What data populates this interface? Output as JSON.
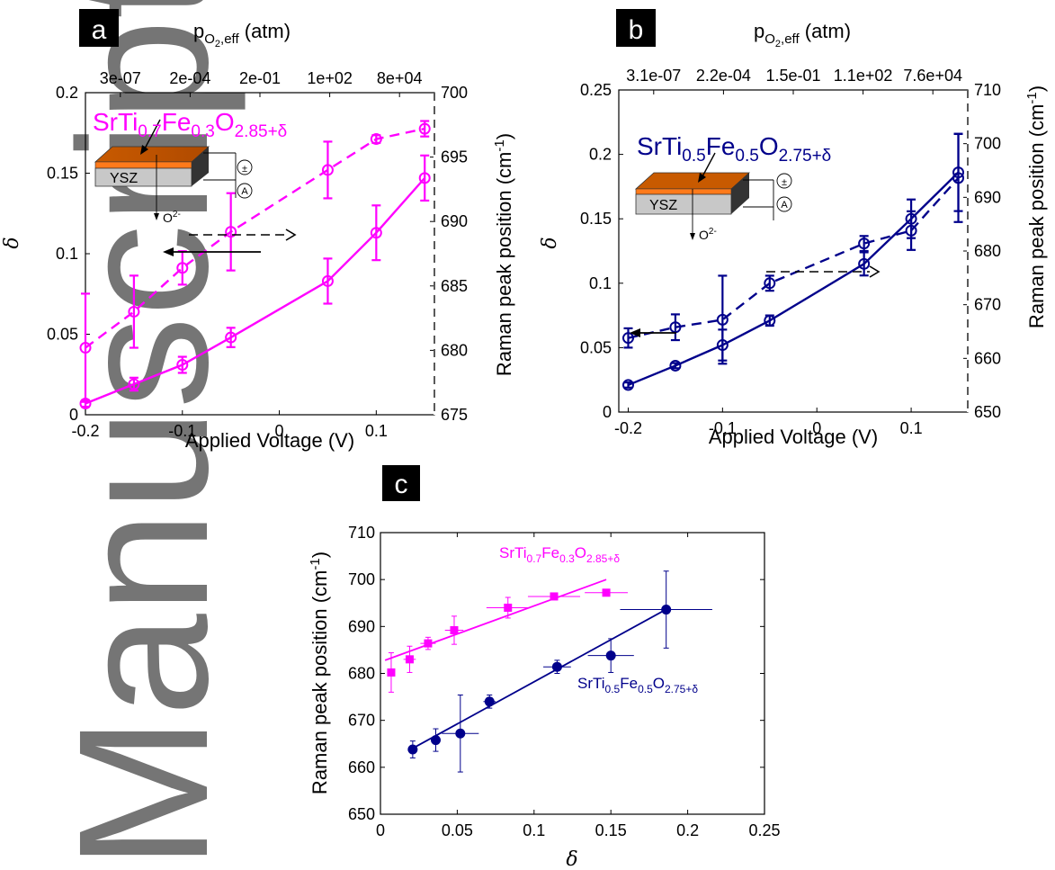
{
  "chart_data": [
    {
      "panel": "a",
      "type": "line",
      "top_axis_label": "p",
      "top_axis_sub": "O",
      "top_axis_sub2": "2",
      "top_axis_sub3": ",eff",
      "top_axis_unit": " (atm)",
      "top_ticks": [
        "3e-07",
        "2e-04",
        "2e-01",
        "1e+02",
        "8e+04"
      ],
      "xlabel": "Applied Voltage (V)",
      "xlim": [
        -0.2,
        0.16
      ],
      "x_ticks": [
        "-0.2",
        "-0.1",
        "0",
        "0.1"
      ],
      "x_tick_values": [
        -0.2,
        -0.1,
        0,
        0.1
      ],
      "ylabel_left": "δ",
      "ylim_left": [
        0,
        0.2
      ],
      "y_ticks_left": [
        "0",
        "0.05",
        "0.1",
        "0.15",
        "0.2"
      ],
      "y_tick_values_left": [
        0,
        0.05,
        0.1,
        0.15,
        0.2
      ],
      "ylabel_right": "Raman peak position (cm",
      "ylabel_right_sup": "-1",
      "ylabel_right_end": ")",
      "ylim_right": [
        675,
        700
      ],
      "y_ticks_right": [
        "675",
        "680",
        "685",
        "690",
        "695",
        "700"
      ],
      "y_tick_values_right": [
        675,
        680,
        685,
        690,
        695,
        700
      ],
      "color": "#ff00ff",
      "formula": {
        "a": "SrTi",
        "b": "0.7",
        "c": "Fe",
        "d": "0.3",
        "e": "O",
        "f": "2.85+δ"
      },
      "inset": {
        "material": "YSZ",
        "ion": "O",
        "ion_charge": "2-",
        "meter": "A",
        "source": "±"
      },
      "series": [
        {
          "axis": "left",
          "style": "solid",
          "x": [
            -0.2,
            -0.15,
            -0.1,
            -0.05,
            0.05,
            0.1,
            0.15
          ],
          "y": [
            0.007,
            0.019,
            0.031,
            0.048,
            0.083,
            0.113,
            0.147
          ],
          "err": [
            0.002,
            0.004,
            0.005,
            0.006,
            0.014,
            0.017,
            0.014
          ]
        },
        {
          "axis": "right",
          "style": "dashed",
          "x": [
            -0.2,
            -0.15,
            -0.1,
            -0.05,
            0.05,
            0.1,
            0.15
          ],
          "y": [
            680.2,
            683.0,
            686.4,
            689.2,
            694.0,
            696.4,
            697.2
          ],
          "err": [
            4.2,
            2.8,
            1.3,
            3.0,
            2.2,
            0.3,
            0.6
          ]
        }
      ]
    },
    {
      "panel": "b",
      "type": "line",
      "top_axis_label": "p",
      "top_axis_sub": "O",
      "top_axis_sub2": "2",
      "top_axis_sub3": ",eff",
      "top_axis_unit": " (atm)",
      "top_ticks": [
        "3.1e-07",
        "2.2e-04",
        "1.5e-01",
        "1.1e+02",
        "7.6e+04"
      ],
      "xlabel": "Applied Voltage (V)",
      "xlim": [
        -0.21,
        0.16
      ],
      "x_ticks": [
        "-0.2",
        "-0.1",
        "0",
        "0.1"
      ],
      "x_tick_values": [
        -0.2,
        -0.1,
        0,
        0.1
      ],
      "ylabel_left": "δ",
      "ylim_left": [
        0,
        0.25
      ],
      "y_ticks_left": [
        "0",
        "0.05",
        "0.1",
        "0.15",
        "0.2",
        "0.25"
      ],
      "y_tick_values_left": [
        0,
        0.05,
        0.1,
        0.15,
        0.2,
        0.25
      ],
      "ylabel_right": "Raman peak position (cm",
      "ylabel_right_sup": "-1",
      "ylabel_right_end": ")",
      "ylim_right": [
        650,
        710
      ],
      "y_ticks_right": [
        "650",
        "660",
        "670",
        "680",
        "690",
        "700",
        "710"
      ],
      "y_tick_values_right": [
        650,
        660,
        670,
        680,
        690,
        700,
        710
      ],
      "color": "#00008b",
      "formula": {
        "a": "SrTi",
        "b": "0.5",
        "c": "Fe",
        "d": "0.5",
        "e": "O",
        "f": "2.75+δ"
      },
      "inset": {
        "material": "YSZ",
        "ion": "O",
        "ion_charge": "2-",
        "meter": "A",
        "source": "±"
      },
      "series": [
        {
          "axis": "left",
          "style": "solid",
          "x": [
            -0.2,
            -0.15,
            -0.1,
            -0.05,
            0.05,
            0.1,
            0.15
          ],
          "y": [
            0.021,
            0.036,
            0.052,
            0.071,
            0.115,
            0.15,
            0.186
          ],
          "err": [
            0.002,
            0.002,
            0.012,
            0.004,
            0.009,
            0.015,
            0.03
          ]
        },
        {
          "axis": "right",
          "style": "dashed",
          "x": [
            -0.2,
            -0.15,
            -0.1,
            -0.05,
            0.05,
            0.1,
            0.15
          ],
          "y": [
            663.8,
            665.8,
            667.2,
            674.0,
            681.4,
            683.8,
            693.6
          ],
          "err": [
            1.8,
            2.4,
            8.2,
            1.4,
            1.4,
            3.6,
            8.2
          ]
        }
      ]
    },
    {
      "panel": "c",
      "type": "scatter",
      "xlabel": "δ",
      "xlim": [
        0,
        0.25
      ],
      "x_ticks": [
        "0",
        "0.05",
        "0.1",
        "0.15",
        "0.2",
        "0.25"
      ],
      "x_tick_values": [
        0,
        0.05,
        0.1,
        0.15,
        0.2,
        0.25
      ],
      "ylabel": "Raman peak position (cm",
      "ylabel_sup": "-1",
      "ylabel_end": ")",
      "ylim": [
        650,
        710
      ],
      "y_ticks": [
        "650",
        "660",
        "670",
        "680",
        "690",
        "700",
        "710"
      ],
      "y_tick_values": [
        650,
        660,
        670,
        680,
        690,
        700,
        710
      ],
      "series": [
        {
          "color": "#ff00ff",
          "marker": "square",
          "formula": {
            "a": "SrTi",
            "b": "0.7",
            "c": "Fe",
            "d": "0.3",
            "e": "O",
            "f": "2.85+δ"
          },
          "x": [
            0.007,
            0.019,
            0.031,
            0.048,
            0.083,
            0.113,
            0.147
          ],
          "y": [
            680.2,
            683.0,
            686.4,
            689.2,
            694.0,
            696.4,
            697.2
          ],
          "xerr": [
            0.002,
            0.004,
            0.005,
            0.006,
            0.014,
            0.017,
            0.014
          ],
          "yerr": [
            4.2,
            2.8,
            1.3,
            3.0,
            2.2,
            0.3,
            0.6
          ],
          "fit": {
            "x": [
              0.003,
              0.147
            ],
            "y": [
              682.8,
              700.0
            ]
          }
        },
        {
          "color": "#00008b",
          "marker": "circle",
          "formula": {
            "a": "SrTi",
            "b": "0.5",
            "c": "Fe",
            "d": "0.5",
            "e": "O",
            "f": "2.75+δ"
          },
          "x": [
            0.021,
            0.036,
            0.052,
            0.071,
            0.115,
            0.15,
            0.186
          ],
          "y": [
            663.8,
            665.8,
            667.2,
            674.0,
            681.4,
            683.8,
            693.6
          ],
          "xerr": [
            0.002,
            0.002,
            0.012,
            0.004,
            0.009,
            0.015,
            0.03
          ],
          "yerr": [
            1.8,
            2.4,
            8.2,
            1.4,
            1.4,
            3.6,
            8.2
          ],
          "fit": {
            "x": [
              0.018,
              0.188
            ],
            "y": [
              663.5,
              694.0
            ]
          }
        }
      ]
    }
  ],
  "panel_tags": [
    "a",
    "b",
    "c"
  ],
  "watermark": "Manuscript"
}
